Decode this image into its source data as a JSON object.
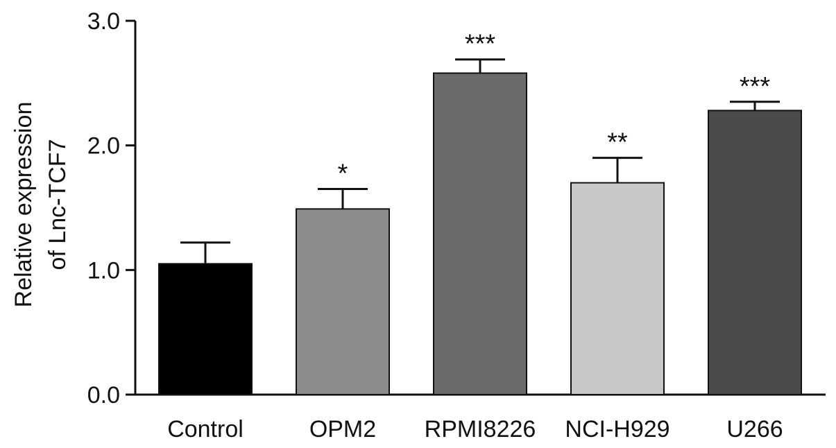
{
  "chart_data": {
    "type": "bar",
    "title": "",
    "xlabel": "",
    "ylabel_lines": [
      "Relative expression",
      "of Lnc-TCF7"
    ],
    "categories": [
      "Control",
      "OPM2",
      "RPMI8226",
      "NCI-H929",
      "U266"
    ],
    "values": [
      1.05,
      1.49,
      2.58,
      1.7,
      2.28
    ],
    "errors": [
      0.17,
      0.16,
      0.11,
      0.2,
      0.07
    ],
    "significance": [
      "",
      "*",
      "***",
      "**",
      "***"
    ],
    "colors": [
      "#000000",
      "#8c8c8c",
      "#6b6b6b",
      "#c8c8c8",
      "#4b4b4b"
    ],
    "ylim": [
      0,
      3.0
    ],
    "yticks": [
      0,
      1,
      2,
      3
    ],
    "ytick_labels": [
      "0.0",
      "1.0",
      "2.0",
      "3.0"
    ],
    "grid": false,
    "legend": "none"
  }
}
